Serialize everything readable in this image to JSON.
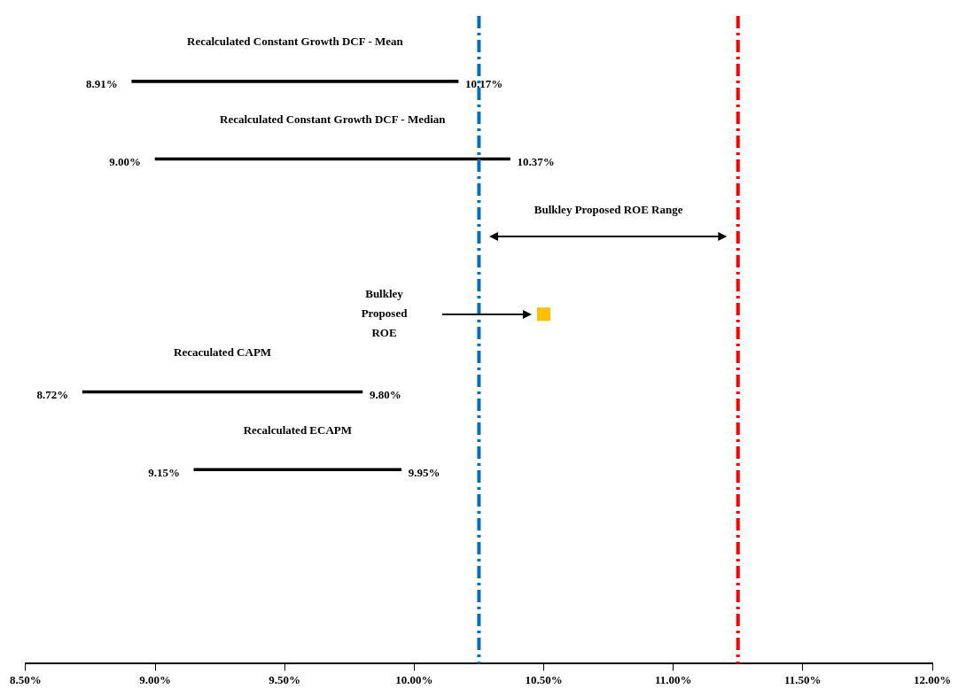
{
  "chart_data": {
    "type": "bar",
    "orientation": "horizontal",
    "categories": [
      "Recalculated Constant Growth DCF - Mean",
      "Recalculated Constant Growth DCF - Median",
      null,
      null,
      "Recaculated CAPM",
      "Recalculated ECAPM",
      null,
      null
    ],
    "series": [
      {
        "color": "#000000",
        "base": [
          8.91,
          9.0,
          null,
          null,
          8.72,
          9.15,
          null,
          null
        ],
        "values": [
          1.26,
          1.37,
          null,
          null,
          1.08,
          0.8,
          null,
          null
        ]
      },
      {
        "type": "scatter",
        "name": "Bulkley Proposed ROE",
        "color": "#ffc000",
        "marker": "square",
        "values": [
          null,
          null,
          null,
          10.5,
          null,
          null,
          null,
          null
        ]
      }
    ],
    "xlim": [
      8.5,
      12
    ],
    "xticks": [
      {
        "value": 8.5,
        "label": "8.50%"
      },
      {
        "value": 9,
        "label": "9.00%"
      },
      {
        "value": 9.5,
        "label": "9.50%"
      },
      {
        "value": 10,
        "label": "10.00%"
      },
      {
        "value": 10.5,
        "label": "10.50%"
      },
      {
        "value": 11,
        "label": "11.00%"
      },
      {
        "value": 11.5,
        "label": "11.50%"
      },
      {
        "value": 12,
        "label": "12.00%"
      }
    ],
    "ref_lines": [
      {
        "axis": "x",
        "value": 10.25,
        "color": "#0070c0",
        "line_style": "dashed"
      },
      {
        "axis": "x",
        "value": 11.25,
        "color": "#ff0000",
        "line_style": "dashed"
      }
    ],
    "annotations": [
      "8.91%",
      "10.17%",
      "9.00%",
      "10.37%",
      "8.72%",
      "9.80%",
      "9.15%",
      "9.95%",
      "Bulkley Proposed ROE Range"
    ],
    "grid": false,
    "legend": false
  }
}
